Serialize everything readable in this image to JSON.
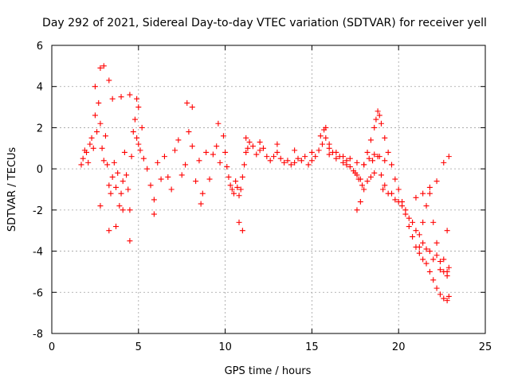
{
  "chart_data": {
    "type": "scatter",
    "title": "Day 292 of 2021, Sidereal Day-to-day VTEC variation (SDTVAR) for receiver yell",
    "xlabel": "GPS time / hours",
    "ylabel": "SDTVAR / TECUs",
    "xlim": [
      0,
      25
    ],
    "ylim": [
      -8,
      6
    ],
    "xticks": [
      "0",
      "5",
      "10",
      "15",
      "20",
      "25"
    ],
    "yticks": [
      "-8",
      "-6",
      "-4",
      "-2",
      "0",
      "2",
      "4",
      "6"
    ],
    "grid": true,
    "marker": "plus",
    "series": [
      {
        "name": "SDTVAR",
        "color": "#ff0000",
        "x": [
          1.7,
          1.8,
          1.9,
          2.0,
          2.1,
          2.2,
          2.3,
          2.4,
          2.5,
          2.6,
          2.7,
          2.8,
          2.9,
          3.0,
          3.1,
          3.2,
          3.3,
          3.4,
          3.5,
          3.6,
          3.7,
          3.8,
          3.9,
          4.0,
          4.1,
          4.2,
          4.3,
          4.4,
          4.5,
          4.6,
          4.7,
          4.8,
          4.9,
          5.0,
          5.1,
          5.2,
          5.3,
          5.5,
          5.7,
          5.9,
          6.1,
          6.3,
          6.5,
          6.7,
          6.9,
          7.1,
          7.3,
          7.5,
          7.7,
          7.9,
          8.1,
          8.3,
          8.5,
          8.7,
          8.9,
          9.1,
          9.3,
          9.5,
          9.7,
          9.9,
          10.0,
          10.1,
          10.2,
          10.3,
          10.4,
          10.5,
          10.6,
          10.7,
          10.8,
          10.9,
          11.0,
          11.1,
          11.2,
          11.3,
          11.4,
          11.6,
          11.8,
          12.0,
          12.2,
          12.4,
          12.6,
          12.8,
          13.0,
          13.2,
          13.4,
          13.6,
          13.8,
          14.0,
          14.2,
          14.4,
          14.6,
          14.8,
          15.0,
          15.2,
          15.4,
          15.6,
          15.8,
          16.0,
          16.2,
          16.4,
          16.6,
          16.8,
          17.0,
          17.2,
          17.4,
          17.6,
          17.8,
          18.0,
          18.2,
          18.4,
          18.6,
          18.7,
          18.8,
          18.9,
          19.0,
          19.2,
          19.4,
          19.6,
          19.8,
          20.0,
          20.2,
          20.4,
          20.6,
          20.8,
          21.0,
          21.2,
          21.4,
          21.6,
          21.8,
          22.0,
          22.2,
          22.4,
          22.6,
          22.8,
          22.9,
          2.5,
          2.8,
          3.0,
          3.3,
          3.5,
          4.0,
          4.5,
          4.9,
          5.0,
          7.8,
          8.1,
          9.6,
          2.8,
          3.3,
          3.7,
          4.1,
          4.5,
          5.9,
          8.6,
          10.8,
          11.0,
          15.5,
          15.7,
          15.8,
          16.0,
          16.4,
          16.8,
          17.2,
          17.6,
          18.0,
          18.3,
          18.6,
          18.9,
          19.2,
          17.6,
          17.8,
          18.0,
          18.2,
          18.4,
          18.6,
          19.0,
          19.2,
          19.6,
          20.0,
          20.4,
          20.8,
          21.2,
          21.6,
          22.0,
          22.4,
          22.8,
          22.9,
          21.2,
          21.4,
          21.6,
          21.8,
          22.0,
          22.2,
          22.4,
          22.6,
          22.8,
          17.5,
          17.7,
          17.9,
          18.5,
          18.8,
          19.1,
          19.4,
          19.8,
          20.2,
          20.6,
          21.0,
          21.4,
          21.8,
          22.2,
          22.6,
          21.0,
          21.4,
          21.8,
          22.2,
          22.6,
          22.9,
          22.8,
          11.2,
          12.0,
          13.0,
          14.0,
          15.0,
          16.0,
          17.0
        ],
        "y": [
          0.2,
          0.5,
          0.9,
          0.8,
          0.3,
          1.2,
          1.5,
          1.0,
          2.6,
          1.8,
          3.2,
          2.2,
          1.0,
          0.4,
          1.6,
          0.2,
          -0.8,
          -1.2,
          -0.4,
          0.3,
          -0.9,
          -0.2,
          -1.8,
          -1.2,
          -0.6,
          0.8,
          -0.3,
          -1.0,
          -2.0,
          0.6,
          1.8,
          2.4,
          1.5,
          1.2,
          0.9,
          2.0,
          0.5,
          0.0,
          -0.8,
          -1.5,
          0.3,
          -0.5,
          0.6,
          -0.4,
          -1.0,
          0.9,
          1.4,
          -0.3,
          0.2,
          1.8,
          1.1,
          -0.6,
          0.4,
          -1.2,
          0.8,
          -0.5,
          0.7,
          1.1,
          0.3,
          1.6,
          0.8,
          0.1,
          -0.4,
          -0.8,
          -1.0,
          -1.2,
          -0.6,
          -0.9,
          -1.3,
          -1.0,
          -0.4,
          0.2,
          0.8,
          1.0,
          1.3,
          1.1,
          0.7,
          0.9,
          1.0,
          0.6,
          0.4,
          0.6,
          0.8,
          0.5,
          0.3,
          0.4,
          0.2,
          0.3,
          0.5,
          0.4,
          0.6,
          0.2,
          0.4,
          0.6,
          0.9,
          1.2,
          1.5,
          1.2,
          0.8,
          0.5,
          0.6,
          0.3,
          0.2,
          0.1,
          -0.1,
          -0.3,
          -0.5,
          0.2,
          0.8,
          1.4,
          2.0,
          2.4,
          2.8,
          2.6,
          2.2,
          1.5,
          0.8,
          0.2,
          -0.5,
          -1.0,
          -1.6,
          -2.2,
          -2.8,
          -3.3,
          -3.8,
          -4.1,
          -4.4,
          -4.6,
          -5.0,
          -5.4,
          -5.8,
          -6.1,
          -6.3,
          -6.4,
          -6.2,
          4.0,
          4.9,
          5.0,
          4.3,
          3.4,
          3.5,
          3.6,
          3.4,
          3.0,
          3.2,
          3.0,
          2.2,
          -1.8,
          -3.0,
          -2.8,
          -2.0,
          -3.5,
          -2.2,
          -1.7,
          -2.6,
          -3.0,
          1.6,
          1.9,
          2.0,
          1.0,
          0.8,
          0.6,
          0.5,
          0.3,
          0.2,
          0.5,
          0.7,
          0.6,
          0.4,
          -2.0,
          -1.6,
          -1.0,
          -0.6,
          -0.4,
          -0.2,
          -0.3,
          -0.8,
          -1.2,
          -1.6,
          -2.0,
          -2.6,
          -3.2,
          -3.9,
          -4.4,
          -4.9,
          -5.0,
          -4.8,
          -3.8,
          -2.6,
          -1.8,
          -1.2,
          -2.6,
          -3.6,
          -4.5,
          -5.0,
          -5.2,
          -0.2,
          -0.5,
          -0.8,
          0.4,
          0.6,
          -1.0,
          -1.2,
          -1.5,
          -1.8,
          -2.4,
          -3.0,
          -3.6,
          -4.0,
          -4.2,
          -4.4,
          -1.4,
          -1.2,
          -0.9,
          -0.6,
          0.3,
          0.6,
          -3.0,
          1.5,
          1.3,
          1.2,
          0.9,
          0.8,
          0.7,
          0.4
        ]
      }
    ]
  }
}
